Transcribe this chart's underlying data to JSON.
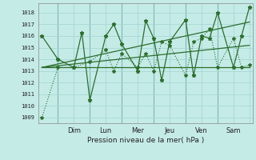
{
  "xlabel": "Pression niveau de la mer( hPa )",
  "bg_color": "#c5ebe7",
  "grid_color": "#a8d8d4",
  "line_color": "#2d6e2d",
  "ylim": [
    1008.5,
    1018.8
  ],
  "xlim": [
    -0.2,
    13.2
  ],
  "day_labels": [
    "Dim",
    "Lun",
    "Mer",
    "Jeu",
    "Ven",
    "Sam"
  ],
  "day_positions": [
    2,
    4,
    6,
    8,
    10,
    12
  ],
  "yticks": [
    1009,
    1010,
    1011,
    1012,
    1013,
    1014,
    1015,
    1016,
    1017,
    1018
  ],
  "xtick_minor_positions": [
    1,
    2,
    3,
    4,
    5,
    6,
    7,
    8,
    9,
    10,
    11,
    12,
    13
  ],
  "zigzag": {
    "x": [
      0,
      1,
      2,
      2.5,
      3,
      4,
      4.5,
      5,
      6,
      6.5,
      7,
      7.5,
      8,
      9,
      9.5,
      10,
      10.5,
      11,
      12,
      12.5,
      13
    ],
    "y": [
      1016,
      1014,
      1013.3,
      1016.3,
      1010.5,
      1016.0,
      1017.0,
      1015.3,
      1013.0,
      1017.3,
      1015.8,
      1012.2,
      1015.5,
      1017.4,
      1012.6,
      1016.0,
      1015.8,
      1018.0,
      1013.3,
      1016.0,
      1018.5
    ]
  },
  "low_zigzag": {
    "x": [
      0,
      1,
      2,
      3,
      4,
      4.5,
      5,
      6,
      6.5,
      7,
      7.5,
      8,
      9,
      9.5,
      10,
      10.5,
      11,
      12,
      12.5,
      13
    ],
    "y": [
      1009.0,
      1013.3,
      1013.3,
      1013.8,
      1014.8,
      1013.0,
      1014.5,
      1013.3,
      1014.5,
      1013.0,
      1015.5,
      1015.2,
      1012.6,
      1015.5,
      1015.8,
      1016.6,
      1013.3,
      1015.8,
      1013.3,
      1013.5
    ]
  },
  "trend_flat": {
    "x": [
      0,
      13
    ],
    "y": [
      1013.3,
      1013.3
    ]
  },
  "trend_mid": {
    "x": [
      0,
      13
    ],
    "y": [
      1013.3,
      1015.2
    ]
  },
  "trend_high": {
    "x": [
      0,
      13
    ],
    "y": [
      1013.3,
      1017.2
    ]
  },
  "vline_positions": [
    1,
    3,
    5,
    7,
    9,
    11
  ]
}
